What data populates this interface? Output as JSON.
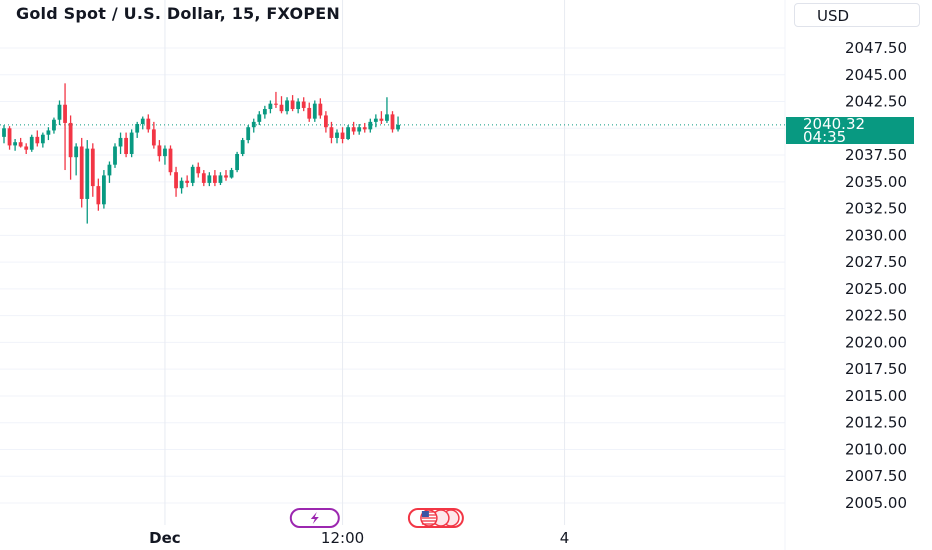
{
  "header": {
    "title": "Gold Spot / U.S. Dollar, 15, FXOPEN",
    "currency": "USD"
  },
  "last_price": {
    "price": "2040.32",
    "countdown": "04:35",
    "color": "#089981"
  },
  "colors": {
    "up": "#089981",
    "down": "#f23645",
    "grid": "#f0f3fa",
    "last_line": "#089981"
  },
  "events": [
    {
      "icon": "lightning-icon",
      "color": "#9c27b0",
      "time_index": 56
    },
    {
      "icon": "us-flag-icon",
      "color": "#f23645",
      "time_index": 78
    }
  ],
  "chart_data": {
    "type": "candlestick",
    "title": "Gold Spot / U.S. Dollar, 15, FXOPEN",
    "xlabel": "",
    "ylabel": "",
    "ylim": [
      2004,
      2050.5
    ],
    "yticks": [
      2047.5,
      2045,
      2042.5,
      2040,
      2037.5,
      2035,
      2032.5,
      2030,
      2027.5,
      2025,
      2022.5,
      2020,
      2017.5,
      2015,
      2012.5,
      2010,
      2007.5,
      2005
    ],
    "ytick_labels": [
      "2047.50",
      "2045.00",
      "2042.50",
      "",
      "2037.50",
      "2035.00",
      "2032.50",
      "2030.00",
      "2027.50",
      "2025.00",
      "2022.50",
      "2020.00",
      "2017.50",
      "2015.00",
      "2012.50",
      "2010.00",
      "2007.50",
      "2005.00"
    ],
    "xticks": [
      {
        "label": "Dec",
        "index": 29
      },
      {
        "label": "12:00",
        "index": 61
      },
      {
        "label": "4",
        "index": 101
      }
    ],
    "grid": true,
    "last_price": 2040.32,
    "candles": [
      [
        2039.2,
        2040.3,
        2038.6,
        2040.0
      ],
      [
        2040.0,
        2040.2,
        2038.0,
        2038.4
      ],
      [
        2038.4,
        2039.0,
        2037.9,
        2038.7
      ],
      [
        2038.7,
        2039.1,
        2038.2,
        2038.3
      ],
      [
        2038.3,
        2038.6,
        2037.6,
        2038.0
      ],
      [
        2038.0,
        2039.4,
        2037.8,
        2039.2
      ],
      [
        2039.2,
        2039.8,
        2038.3,
        2038.6
      ],
      [
        2038.6,
        2039.6,
        2038.2,
        2039.4
      ],
      [
        2039.4,
        2040.1,
        2038.9,
        2039.8
      ],
      [
        2039.8,
        2041.0,
        2039.5,
        2040.8
      ],
      [
        2040.8,
        2042.6,
        2040.3,
        2042.2
      ],
      [
        2042.2,
        2044.2,
        2036.1,
        2040.5
      ],
      [
        2040.5,
        2041.2,
        2035.2,
        2037.3
      ],
      [
        2037.3,
        2038.6,
        2035.6,
        2038.3
      ],
      [
        2038.3,
        2039.1,
        2032.6,
        2033.4
      ],
      [
        2033.4,
        2038.9,
        2031.1,
        2038.1
      ],
      [
        2038.1,
        2038.6,
        2033.6,
        2034.6
      ],
      [
        2034.6,
        2035.3,
        2032.3,
        2032.9
      ],
      [
        2032.9,
        2036.1,
        2032.5,
        2035.6
      ],
      [
        2035.6,
        2036.9,
        2034.9,
        2036.6
      ],
      [
        2036.6,
        2038.6,
        2036.3,
        2038.3
      ],
      [
        2038.3,
        2039.6,
        2037.6,
        2039.1
      ],
      [
        2039.1,
        2039.6,
        2037.3,
        2037.6
      ],
      [
        2037.6,
        2039.9,
        2037.3,
        2039.6
      ],
      [
        2039.6,
        2040.6,
        2039.1,
        2040.4
      ],
      [
        2040.4,
        2041.1,
        2039.9,
        2040.9
      ],
      [
        2040.9,
        2041.3,
        2039.6,
        2039.9
      ],
      [
        2039.9,
        2040.6,
        2038.1,
        2038.4
      ],
      [
        2038.4,
        2038.9,
        2036.9,
        2037.4
      ],
      [
        2037.4,
        2038.4,
        2036.6,
        2038.1
      ],
      [
        2038.1,
        2038.4,
        2035.6,
        2035.9
      ],
      [
        2035.9,
        2036.4,
        2033.6,
        2034.4
      ],
      [
        2034.4,
        2035.4,
        2033.9,
        2035.1
      ],
      [
        2035.1,
        2035.6,
        2034.5,
        2034.9
      ],
      [
        2034.9,
        2036.6,
        2034.6,
        2036.4
      ],
      [
        2036.4,
        2036.8,
        2035.4,
        2035.8
      ],
      [
        2035.8,
        2036.1,
        2034.6,
        2034.9
      ],
      [
        2034.9,
        2035.9,
        2034.6,
        2035.6
      ],
      [
        2035.6,
        2036.1,
        2034.6,
        2034.9
      ],
      [
        2034.9,
        2035.9,
        2034.7,
        2035.6
      ],
      [
        2035.6,
        2036.1,
        2035.1,
        2035.4
      ],
      [
        2035.4,
        2036.3,
        2035.3,
        2036.1
      ],
      [
        2036.1,
        2037.8,
        2035.9,
        2037.6
      ],
      [
        2037.6,
        2039.1,
        2037.4,
        2038.9
      ],
      [
        2038.9,
        2040.3,
        2038.6,
        2040.1
      ],
      [
        2040.1,
        2040.9,
        2039.6,
        2040.6
      ],
      [
        2040.6,
        2041.6,
        2040.3,
        2041.3
      ],
      [
        2041.3,
        2042.1,
        2040.9,
        2041.8
      ],
      [
        2041.8,
        2042.6,
        2041.4,
        2042.3
      ],
      [
        2042.3,
        2043.4,
        2041.9,
        2042.2
      ],
      [
        2042.2,
        2043.0,
        2041.4,
        2041.6
      ],
      [
        2041.6,
        2042.9,
        2041.3,
        2042.6
      ],
      [
        2042.6,
        2043.1,
        2041.6,
        2041.8
      ],
      [
        2041.8,
        2042.8,
        2041.4,
        2042.5
      ],
      [
        2042.5,
        2042.9,
        2041.6,
        2041.9
      ],
      [
        2041.9,
        2042.4,
        2040.6,
        2040.9
      ],
      [
        2040.9,
        2042.6,
        2040.6,
        2042.3
      ],
      [
        2042.3,
        2042.8,
        2040.9,
        2041.2
      ],
      [
        2041.2,
        2041.6,
        2039.6,
        2040.1
      ],
      [
        2040.1,
        2040.6,
        2038.6,
        2039.1
      ],
      [
        2039.1,
        2039.9,
        2038.6,
        2039.6
      ],
      [
        2039.6,
        2040.1,
        2038.6,
        2039.0
      ],
      [
        2039.0,
        2040.3,
        2038.9,
        2040.1
      ],
      [
        2040.1,
        2040.6,
        2039.4,
        2039.7
      ],
      [
        2039.7,
        2040.4,
        2039.4,
        2040.1
      ],
      [
        2040.1,
        2040.5,
        2039.6,
        2039.9
      ],
      [
        2039.9,
        2040.9,
        2039.6,
        2040.6
      ],
      [
        2040.6,
        2041.3,
        2040.1,
        2040.9
      ],
      [
        2040.9,
        2041.6,
        2040.4,
        2040.7
      ],
      [
        2040.7,
        2042.9,
        2040.5,
        2041.3
      ],
      [
        2041.3,
        2041.6,
        2039.6,
        2039.9
      ],
      [
        2039.9,
        2041.1,
        2039.7,
        2040.32
      ]
    ]
  }
}
